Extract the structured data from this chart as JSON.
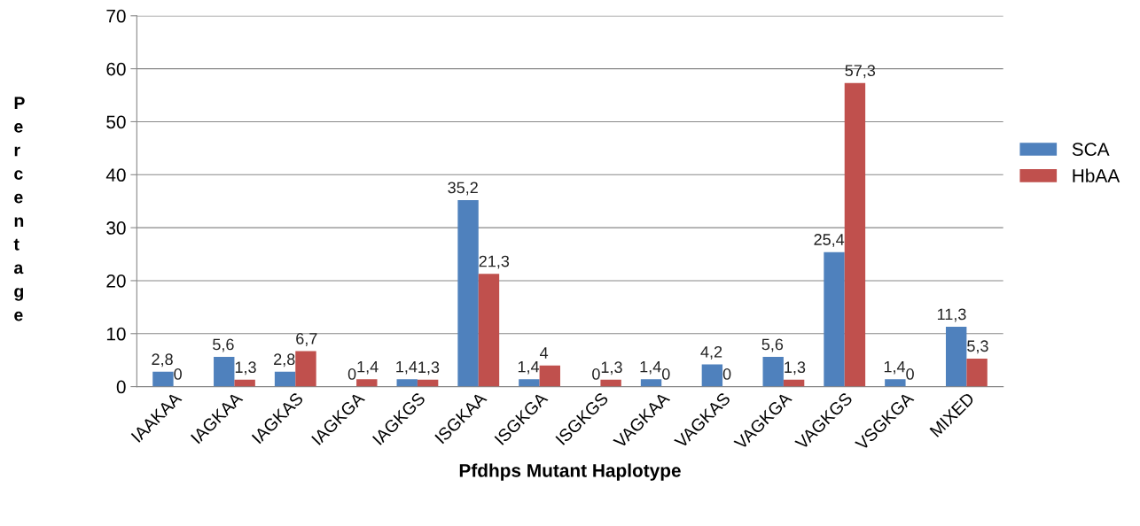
{
  "chart_data": {
    "type": "bar",
    "xlabel": "Pfdhps Mutant Haplotype",
    "ylabel": "Percentage",
    "categories": [
      "IAAKAA",
      "IAGKAA",
      "IAGKAS",
      "IAGKGA",
      "IAGKGS",
      "ISGKAA",
      "ISGKGA",
      "ISGKGS",
      "VAGKAA",
      "VAGKAS",
      "VAGKGA",
      "VAGKGS",
      "VSGKGA",
      "MIXED"
    ],
    "series": [
      {
        "name": "SCA",
        "color": "#4f81bd",
        "values": [
          2.8,
          5.6,
          2.8,
          0,
          1.4,
          35.2,
          1.4,
          0,
          1.4,
          4.2,
          5.6,
          25.4,
          1.4,
          11.3
        ],
        "value_labels": [
          "2,8",
          "5,6",
          "2,8",
          "0",
          "1,4",
          "35,2",
          "1,4",
          "0",
          "1,4",
          "4,2",
          "5,6",
          "25,4",
          "1,4",
          "11,3"
        ]
      },
      {
        "name": "HbAA",
        "color": "#c0504d",
        "values": [
          0,
          1.3,
          6.7,
          1.4,
          1.3,
          21.3,
          4,
          1.3,
          0,
          0,
          1.3,
          57.3,
          0,
          5.3
        ],
        "value_labels": [
          "0",
          "1,3",
          "6,7",
          "1,4",
          "1,3",
          "21,3",
          "4",
          "1,3",
          "0",
          "0",
          "1,3",
          "57,3",
          "0",
          "5,3"
        ]
      }
    ],
    "ylim": [
      0,
      70
    ],
    "yticks": [
      0,
      10,
      20,
      30,
      40,
      50,
      60,
      70
    ],
    "grid": "y",
    "legend": "right"
  }
}
